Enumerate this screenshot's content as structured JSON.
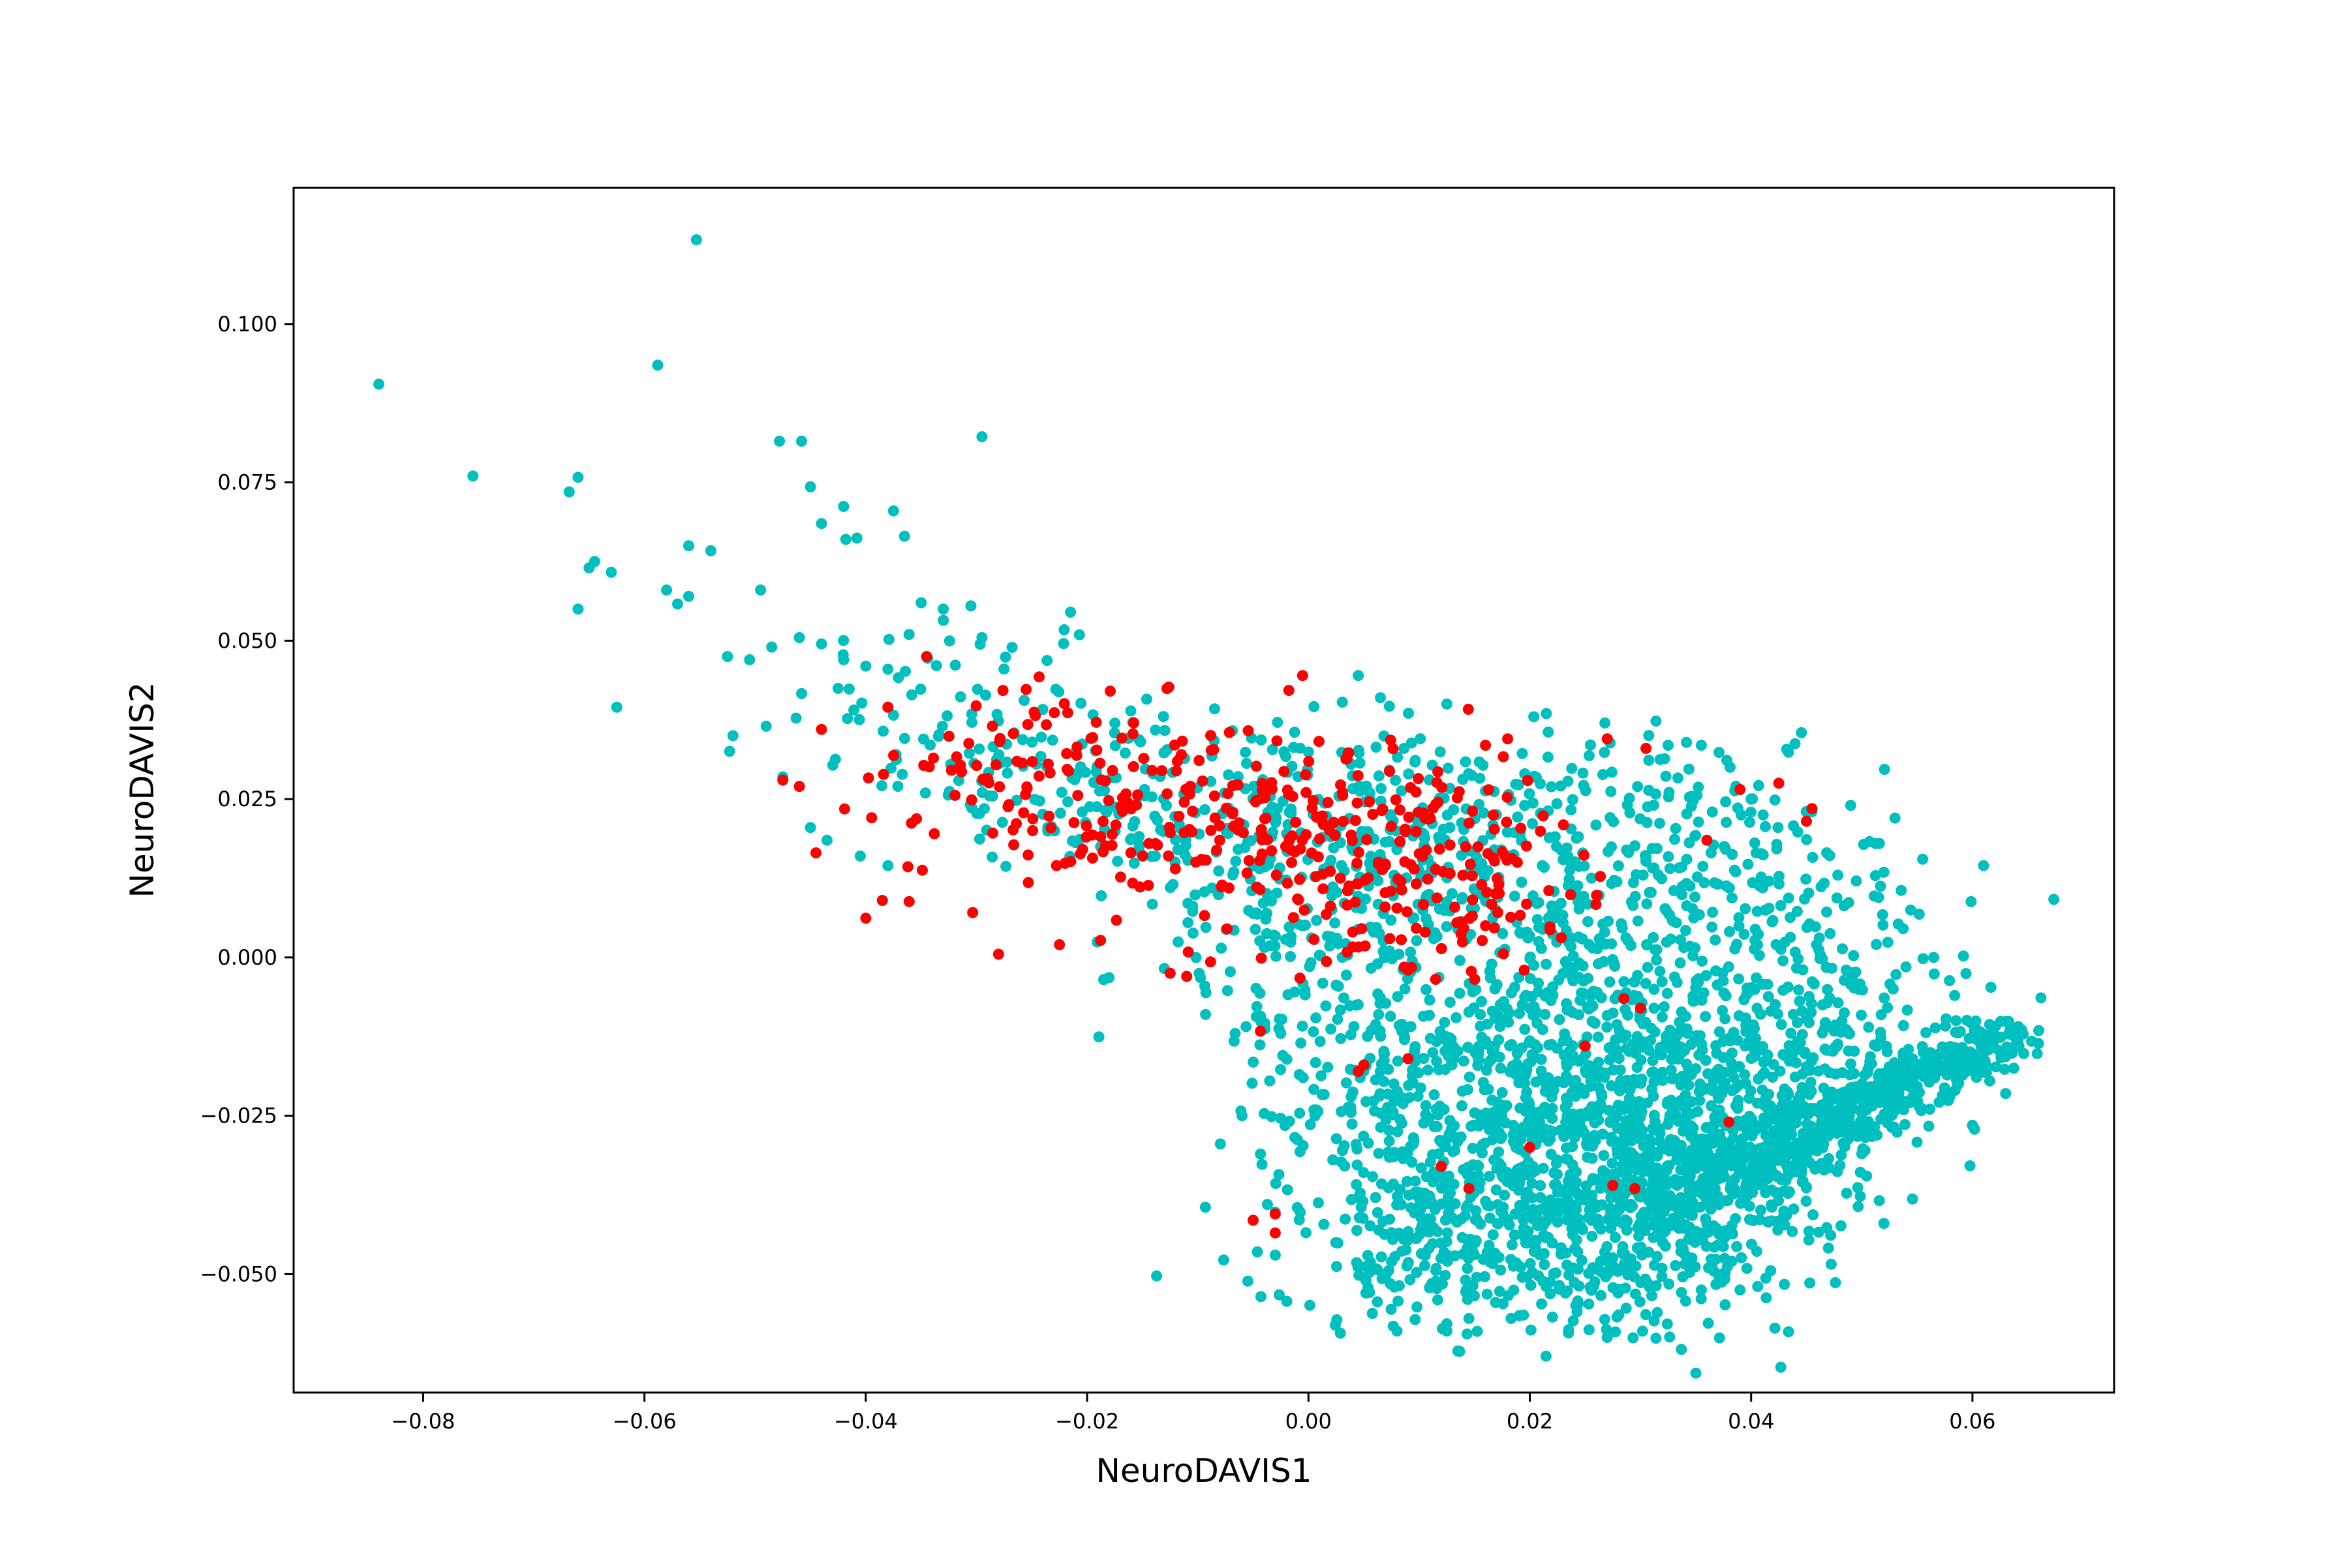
{
  "chart_data": {
    "type": "scatter",
    "title": "",
    "xlabel": "NeuroDAVIS1",
    "ylabel": "NeuroDAVIS2",
    "xlim": [
      -0.0917,
      0.0728
    ],
    "ylim": [
      -0.0687,
      0.1215
    ],
    "xticks": [
      -0.08,
      -0.06,
      -0.04,
      -0.02,
      0.0,
      0.02,
      0.04,
      0.06
    ],
    "xtick_labels": [
      "−0.08",
      "−0.06",
      "−0.04",
      "−0.02",
      "0.00",
      "0.02",
      "0.04",
      "0.06"
    ],
    "yticks": [
      -0.05,
      -0.025,
      0.0,
      0.025,
      0.05,
      0.075,
      0.1
    ],
    "ytick_labels": [
      "−0.050",
      "−0.025",
      "0.000",
      "0.025",
      "0.050",
      "0.075",
      "0.100"
    ],
    "grid": false,
    "legend": null,
    "series": [
      {
        "color": "#00bfbf",
        "points": [
          [
            -0.084,
            0.0905
          ],
          [
            -0.0553,
            0.1133
          ],
          [
            -0.0588,
            0.0935
          ],
          [
            -0.0295,
            0.0822
          ],
          [
            -0.0478,
            0.0815
          ],
          [
            -0.0458,
            0.0815
          ],
          [
            -0.0755,
            0.076
          ],
          [
            -0.066,
            0.0758
          ],
          [
            -0.0668,
            0.0735
          ],
          [
            -0.045,
            0.0743
          ],
          [
            -0.042,
            0.0712
          ],
          [
            -0.0375,
            0.0705
          ],
          [
            -0.044,
            0.0685
          ],
          [
            -0.0418,
            0.066
          ],
          [
            -0.0408,
            0.0662
          ],
          [
            -0.0365,
            0.0665
          ],
          [
            -0.056,
            0.065
          ],
          [
            -0.054,
            0.0642
          ],
          [
            -0.0645,
            0.0625
          ],
          [
            -0.065,
            0.0615
          ],
          [
            -0.063,
            0.0608
          ],
          [
            -0.058,
            0.058
          ],
          [
            -0.056,
            0.057
          ],
          [
            -0.057,
            0.0558
          ],
          [
            -0.066,
            0.055
          ],
          [
            -0.0495,
            0.058
          ],
          [
            -0.0625,
            0.0395
          ],
          [
            -0.0525,
            0.0475
          ],
          [
            -0.0505,
            0.047
          ],
          [
            -0.0485,
            0.049
          ],
          [
            -0.046,
            0.0505
          ],
          [
            -0.044,
            0.0495
          ],
          [
            -0.042,
            0.047
          ],
          [
            -0.04,
            0.046
          ],
          [
            -0.038,
            0.0455
          ],
          [
            -0.035,
            0.056
          ],
          [
            -0.033,
            0.055
          ],
          [
            -0.0305,
            0.0555
          ],
          [
            -0.0295,
            0.0505
          ],
          [
            -0.052,
            0.035
          ],
          [
            -0.049,
            0.0365
          ],
          [
            -0.0475,
            0.0285
          ],
          [
            -0.045,
            0.0205
          ],
          [
            -0.0435,
            0.0185
          ],
          [
            -0.0405,
            0.016
          ],
          [
            -0.038,
            0.0145
          ],
          [
            -0.0215,
            0.0545
          ],
          [
            -0.0185,
            -0.0035
          ],
          [
            -0.0025,
            -0.012
          ],
          [
            -0.0035,
            -0.0195
          ],
          [
            -0.006,
            -0.025
          ],
          [
            -0.003,
            -0.047
          ],
          [
            -0.001,
            -0.0395
          ],
          [
            0.0045,
            0.0445
          ],
          [
            0.0065,
            0.041
          ],
          [
            0.0125,
            0.04
          ],
          [
            0.0215,
            0.0385
          ],
          [
            0.0325,
            0.0335
          ],
          [
            0.0355,
            0.0335
          ],
          [
            0.04,
            0.025
          ],
          [
            0.0455,
            0.023
          ],
          [
            0.049,
            0.024
          ],
          [
            0.053,
            0.022
          ],
          [
            0.0555,
            0.0155
          ],
          [
            0.061,
            0.0145
          ],
          [
            0.0565,
            0.0
          ],
          [
            0.054,
            -0.0015
          ],
          [
            0.039,
            -0.0525
          ],
          [
            0.0355,
            -0.0525
          ],
          [
            0.0145,
            -0.057
          ],
          [
            0.0125,
            -0.059
          ],
          [
            0.008,
            -0.059
          ],
          [
            0.027,
            -0.06
          ],
          [
            0.05,
            -0.031
          ],
          [
            0.052,
            -0.042
          ],
          [
            0.06,
            -0.0265
          ],
          [
            0.063,
            -0.0215
          ]
        ],
        "clusters": [
          {
            "cx": -0.032,
            "cy": 0.038,
            "sx": 0.0075,
            "sy": 0.009,
            "n": 70
          },
          {
            "cx": -0.02,
            "cy": 0.029,
            "sx": 0.008,
            "sy": 0.0075,
            "n": 90
          },
          {
            "cx": -0.005,
            "cy": 0.021,
            "sx": 0.009,
            "sy": 0.008,
            "n": 160
          },
          {
            "cx": 0.01,
            "cy": 0.017,
            "sx": 0.008,
            "sy": 0.0085,
            "n": 170
          },
          {
            "cx": 0.025,
            "cy": 0.015,
            "sx": 0.009,
            "sy": 0.011,
            "n": 200
          },
          {
            "cx": 0.038,
            "cy": 0.011,
            "sx": 0.007,
            "sy": 0.01,
            "n": 130
          },
          {
            "cx": 0.022,
            "cy": -0.008,
            "sx": 0.01,
            "sy": 0.01,
            "n": 300
          },
          {
            "cx": 0.012,
            "cy": -0.025,
            "sx": 0.008,
            "sy": 0.012,
            "n": 250
          },
          {
            "cx": 0.024,
            "cy": -0.033,
            "sx": 0.009,
            "sy": 0.011,
            "n": 450
          },
          {
            "cx": 0.033,
            "cy": -0.03,
            "sx": 0.008,
            "sy": 0.011,
            "n": 400
          },
          {
            "cx": 0.042,
            "cy": -0.017,
            "sx": 0.007,
            "sy": 0.012,
            "n": 220
          },
          {
            "cx": 0.048,
            "cy": -0.008,
            "sx": 0.006,
            "sy": 0.009,
            "n": 90
          },
          {
            "cx": 0.01,
            "cy": -0.045,
            "sx": 0.007,
            "sy": 0.007,
            "n": 140
          },
          {
            "cx": 0.028,
            "cy": -0.047,
            "sx": 0.008,
            "sy": 0.006,
            "n": 160
          },
          {
            "cx": -0.003,
            "cy": 0.003,
            "sx": 0.006,
            "sy": 0.006,
            "n": 60
          },
          {
            "cx": 0.002,
            "cy": -0.015,
            "sx": 0.005,
            "sy": 0.008,
            "n": 60
          }
        ],
        "band": {
          "x0": 0.03,
          "y0": -0.04,
          "x1": 0.063,
          "y1": -0.012,
          "width": 0.0035,
          "n": 650
        }
      },
      {
        "color": "#ff0000",
        "points": [
          [
            -0.0345,
            0.0475
          ],
          [
            -0.038,
            0.0395
          ],
          [
            -0.044,
            0.036
          ],
          [
            -0.0475,
            0.028
          ],
          [
            -0.046,
            0.027
          ],
          [
            -0.0445,
            0.0165
          ],
          [
            -0.04,
            0.0062
          ],
          [
            -0.0385,
            0.009
          ],
          [
            -0.028,
            0.0005
          ],
          [
            -0.0225,
            0.002
          ],
          [
            -0.0125,
            -0.0025
          ],
          [
            -0.011,
            -0.003
          ],
          [
            0.005,
            -0.017
          ],
          [
            0.0045,
            -0.018
          ],
          [
            0.009,
            -0.016
          ],
          [
            -0.003,
            -0.0405
          ],
          [
            -0.005,
            -0.0415
          ],
          [
            -0.003,
            -0.0435
          ],
          [
            0.012,
            -0.033
          ],
          [
            0.0145,
            -0.0365
          ],
          [
            0.0295,
            -0.0365
          ],
          [
            0.0275,
            -0.036
          ],
          [
            0.02,
            -0.03
          ],
          [
            0.039,
            0.0265
          ],
          [
            0.0425,
            0.0275
          ],
          [
            0.0455,
            0.0235
          ],
          [
            0.045,
            0.0215
          ],
          [
            0.036,
            0.0185
          ],
          [
            0.027,
            0.0345
          ],
          [
            0.0305,
            0.033
          ],
          [
            0.018,
            0.0345
          ],
          [
            0.016,
            0.0335
          ],
          [
            0.03,
            -0.008
          ],
          [
            0.0285,
            -0.0065
          ],
          [
            0.025,
            -0.014
          ],
          [
            0.038,
            -0.026
          ],
          [
            0.0195,
            -0.002
          ],
          [
            0.016,
            0.005
          ],
          [
            0.009,
            -0.002
          ],
          [
            0.004,
            0.004
          ]
        ],
        "clusters": [
          {
            "cx": -0.028,
            "cy": 0.03,
            "sx": 0.006,
            "sy": 0.008,
            "n": 55
          },
          {
            "cx": -0.018,
            "cy": 0.025,
            "sx": 0.007,
            "sy": 0.0085,
            "n": 80
          },
          {
            "cx": -0.005,
            "cy": 0.02,
            "sx": 0.008,
            "sy": 0.0075,
            "n": 110
          },
          {
            "cx": 0.007,
            "cy": 0.02,
            "sx": 0.007,
            "sy": 0.007,
            "n": 85
          },
          {
            "cx": 0.015,
            "cy": 0.013,
            "sx": 0.006,
            "sy": 0.008,
            "n": 55
          },
          {
            "cx": 0.005,
            "cy": 0.004,
            "sx": 0.007,
            "sy": 0.006,
            "n": 30
          }
        ]
      }
    ]
  }
}
